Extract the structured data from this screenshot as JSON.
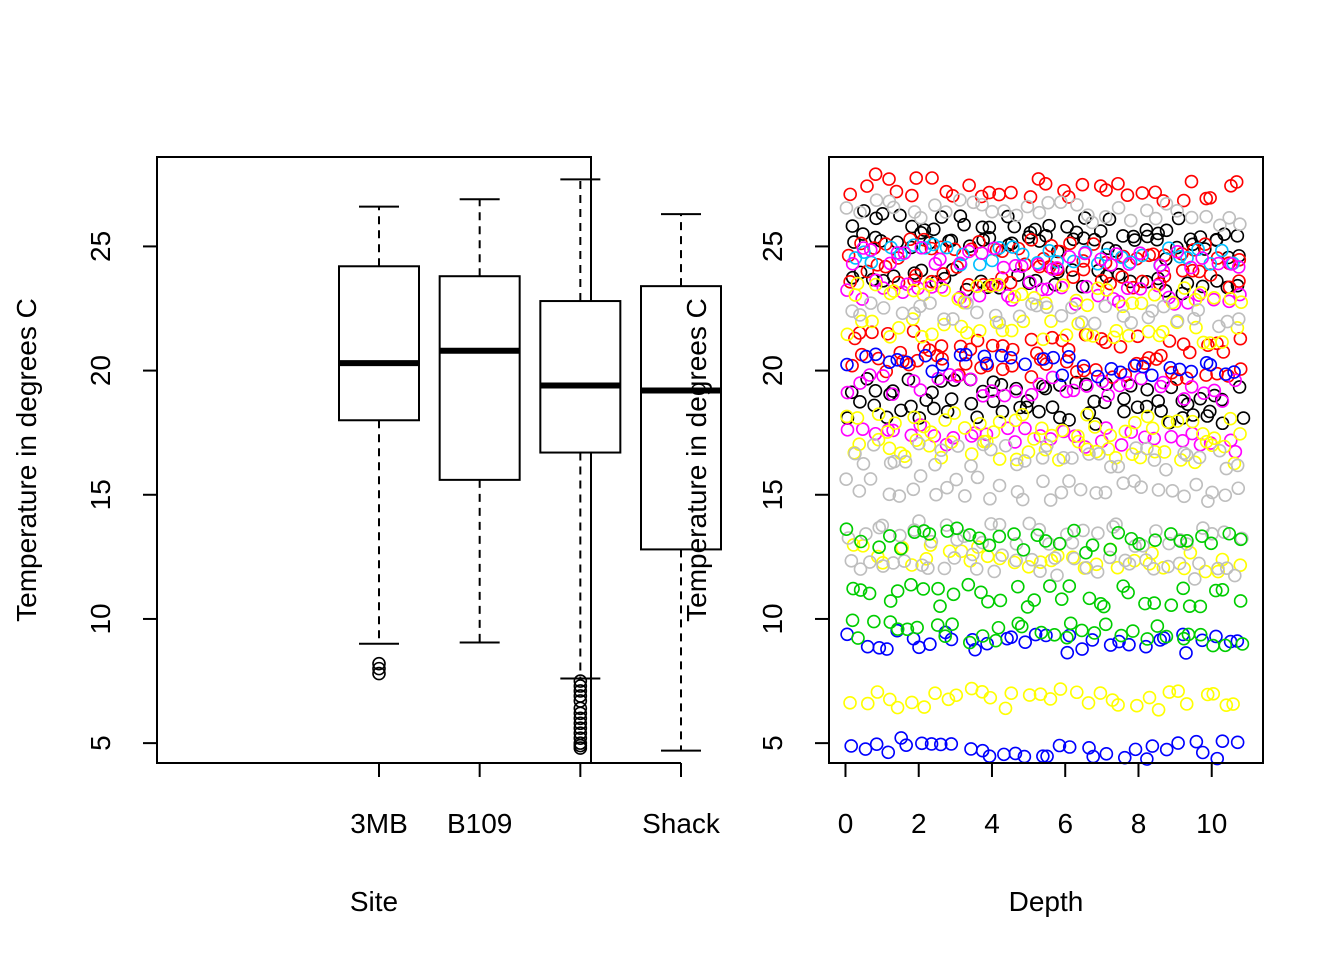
{
  "chart_data": [
    {
      "type": "box",
      "title": "",
      "xlabel": "Site",
      "ylabel": "Temperature in degrees C",
      "categories": [
        "3MB",
        "B109",
        "",
        "Shack"
      ],
      "ylim": [
        4.2,
        28.6
      ],
      "yticks": [
        5,
        10,
        15,
        20,
        25
      ],
      "grid": false,
      "legend": "none",
      "boxes": [
        {
          "name": "3MB",
          "whisker_low": 9.0,
          "q1": 18.0,
          "median": 20.3,
          "q3": 24.2,
          "whisker_high": 26.6,
          "outliers": [
            7.8,
            8.0,
            8.2
          ]
        },
        {
          "name": "B109",
          "whisker_low": 9.05,
          "q1": 15.6,
          "median": 20.8,
          "q3": 23.8,
          "whisker_high": 26.9,
          "outliers": []
        },
        {
          "name": "",
          "whisker_low": 7.6,
          "q1": 16.7,
          "median": 19.4,
          "q3": 22.8,
          "whisker_high": 27.7,
          "outliers": [
            4.8,
            4.9,
            5.0,
            5.2,
            5.4,
            5.6,
            5.8,
            6.0,
            6.2,
            6.4,
            6.7,
            6.9,
            7.1,
            7.3,
            7.5
          ]
        },
        {
          "name": "Shack",
          "whisker_low": 4.7,
          "q1": 12.8,
          "median": 19.2,
          "q3": 23.4,
          "whisker_high": 26.3,
          "outliers": []
        }
      ]
    },
    {
      "type": "scatter",
      "title": "",
      "xlabel": "Depth",
      "ylabel": "Temperature in degrees C",
      "xlim": [
        -0.45,
        11.4
      ],
      "ylim": [
        4.2,
        28.6
      ],
      "xticks": [
        0,
        2,
        4,
        6,
        8,
        10
      ],
      "yticks": [
        5,
        10,
        15,
        20,
        25
      ],
      "grid": false,
      "legend": "none",
      "x_range_of_points": [
        0,
        10.9
      ],
      "series": [
        {
          "color": "#000000",
          "bands": [
            26.0,
            25.2,
            23.8,
            19.3,
            18.5
          ]
        },
        {
          "color": "#FF0000",
          "bands": [
            27.5,
            25.0,
            24.0,
            21.2,
            20.3
          ]
        },
        {
          "color": "#00BFFF",
          "bands": [
            24.8
          ]
        },
        {
          "color": "#FF00FF",
          "bands": [
            24.7,
            23.3,
            19.5,
            17.5
          ]
        },
        {
          "color": "#FFFF00",
          "bands": [
            23.2,
            21.8,
            18.0,
            17.0,
            12.6,
            6.9
          ]
        },
        {
          "color": "#BEBEBE",
          "bands": [
            26.6,
            22.5,
            16.7,
            15.4,
            13.6,
            12.3
          ]
        },
        {
          "color": "#0000FF",
          "bands": [
            20.4,
            9.1,
            4.9
          ]
        },
        {
          "color": "#00CD00",
          "bands": [
            13.3,
            11.0,
            9.5
          ]
        }
      ]
    }
  ]
}
